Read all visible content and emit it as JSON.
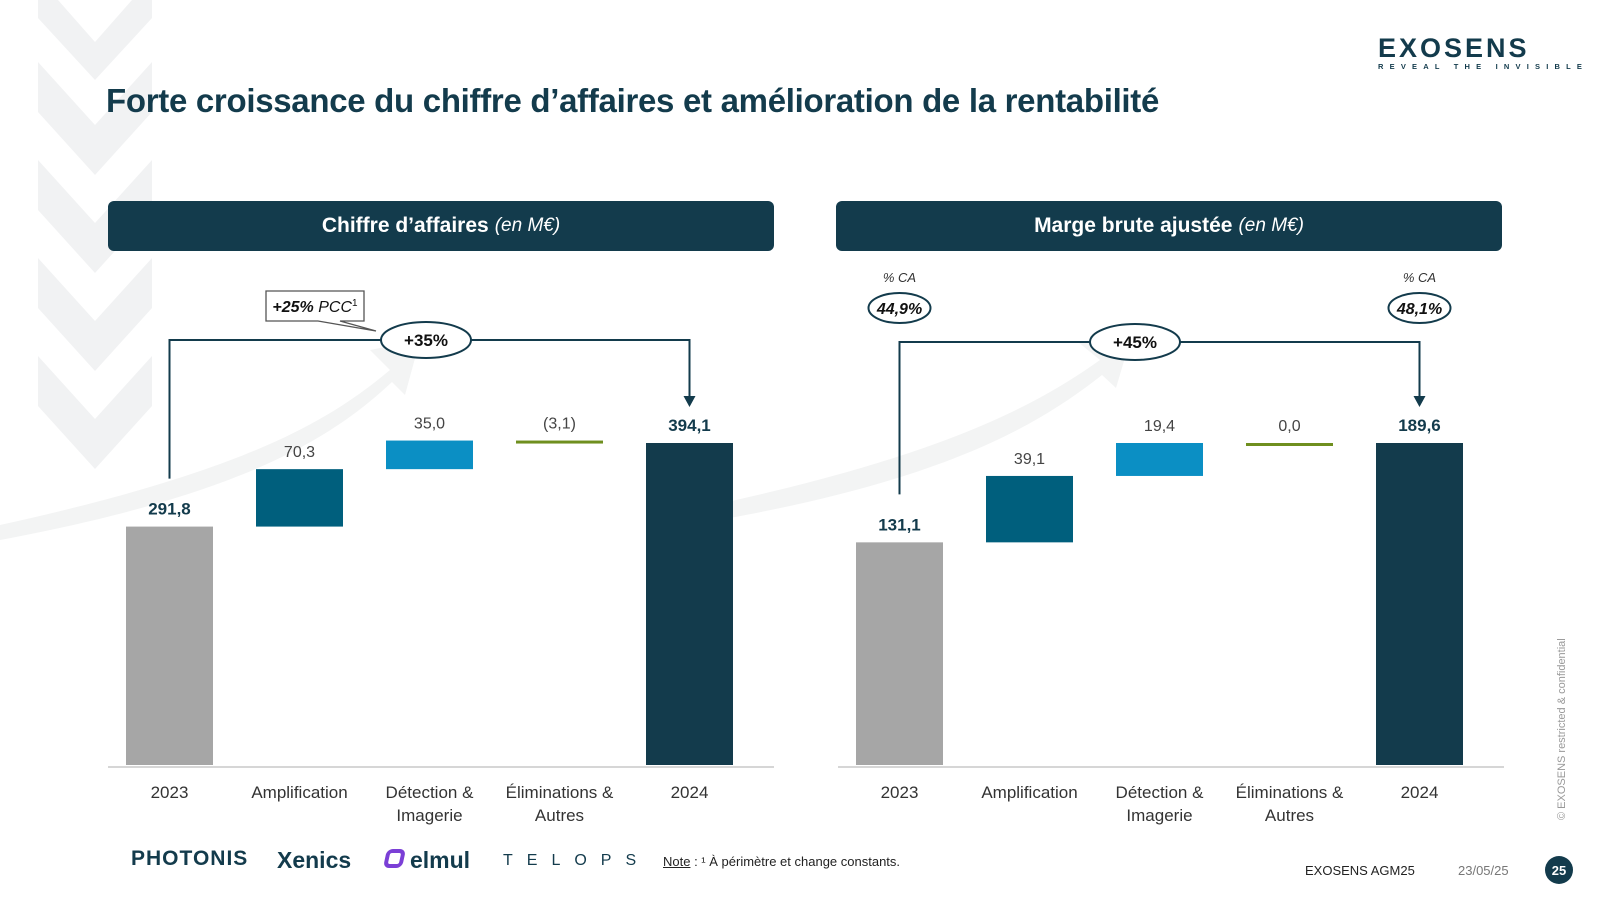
{
  "title": "Forte croissance du chiffre d’affaires et amélioration de la rentabilité",
  "logo": {
    "name": "EXOSENS",
    "tagline": "REVEAL THE INVISIBLE"
  },
  "panels": [
    {
      "title_bold": "Chiffre d’affaires",
      "title_unit": "(en M€)"
    },
    {
      "title_bold": "Marge brute ajustée",
      "title_unit": "(en M€)"
    }
  ],
  "colors": {
    "navy": "#133b4c",
    "gray": "#a6a6a6",
    "teal": "#005f7d",
    "light_blue": "#0b8fc4",
    "green": "#6f8f1f"
  },
  "chart_data": [
    {
      "type": "bar",
      "subtype": "waterfall",
      "title": "Chiffre d’affaires (en M€)",
      "categories": [
        "2023",
        "Amplification",
        "Détection & Imagerie",
        "Éliminations & Autres",
        "2024"
      ],
      "category_lines": [
        [
          "2023"
        ],
        [
          "Amplification"
        ],
        [
          "Détection &",
          "Imagerie"
        ],
        [
          "Éliminations &",
          "Autres"
        ],
        [
          "2024"
        ]
      ],
      "values": [
        291.8,
        70.3,
        35.0,
        -3.1,
        394.1
      ],
      "labels": [
        "291,8",
        "70,3",
        "35,0",
        "(3,1)",
        "394,1"
      ],
      "kinds": [
        "total",
        "delta",
        "delta",
        "delta",
        "total"
      ],
      "bar_colors": [
        "#a6a6a6",
        "#005f7d",
        "#0b8fc4",
        "#6f8f1f",
        "#133b4c"
      ],
      "ylim": [
        0,
        394.1
      ],
      "growth": "+35%",
      "callout_bold": "+25%",
      "callout_text": " PCC",
      "callout_sup": "1"
    },
    {
      "type": "bar",
      "subtype": "waterfall",
      "title": "Marge brute ajustée (en M€)",
      "categories": [
        "2023",
        "Amplification",
        "Détection & Imagerie",
        "Éliminations & Autres",
        "2024"
      ],
      "category_lines": [
        [
          "2023"
        ],
        [
          "Amplification"
        ],
        [
          "Détection &",
          "Imagerie"
        ],
        [
          "Éliminations &",
          "Autres"
        ],
        [
          "2024"
        ]
      ],
      "values": [
        131.1,
        39.1,
        19.4,
        0.0,
        189.6
      ],
      "labels": [
        "131,1",
        "39,1",
        "19,4",
        "0,0",
        "189,6"
      ],
      "kinds": [
        "total",
        "delta",
        "delta",
        "delta",
        "total"
      ],
      "bar_colors": [
        "#a6a6a6",
        "#005f7d",
        "#0b8fc4",
        "#6f8f1f",
        "#133b4c"
      ],
      "ylim": [
        0,
        189.6
      ],
      "growth": "+45%",
      "margin_label": "% CA",
      "margin_left": "44,9%",
      "margin_right": "48,1%"
    }
  ],
  "footer": {
    "note_label": "Note",
    "note_text": " : ¹ À périmètre et change constants.",
    "brands": [
      "PHOTONIS",
      "Xenics",
      "elmul",
      "TELOPS"
    ],
    "event": "EXOSENS AGM25",
    "date": "23/05/25",
    "page": "25",
    "confidential": "© EXOSENS restricted & confidential"
  }
}
